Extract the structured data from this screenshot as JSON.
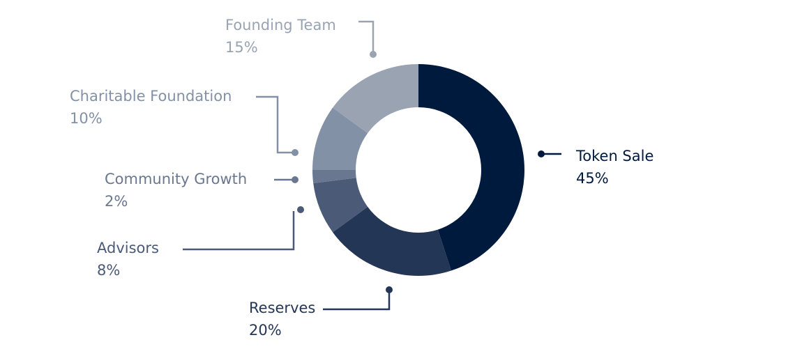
{
  "chart_data": {
    "type": "donut",
    "categories": [
      "Token Sale",
      "Reserves",
      "Advisors",
      "Community Growth",
      "Charitable Foundation",
      "Founding Team"
    ],
    "values": [
      45,
      20,
      8,
      2,
      10,
      15
    ],
    "value_labels": [
      "45%",
      "20%",
      "8%",
      "2%",
      "10%",
      "15%"
    ],
    "colors": [
      "#001a3d",
      "#243656",
      "#4a5a77",
      "#6a7790",
      "#8391a6",
      "#9aa3b2"
    ]
  }
}
